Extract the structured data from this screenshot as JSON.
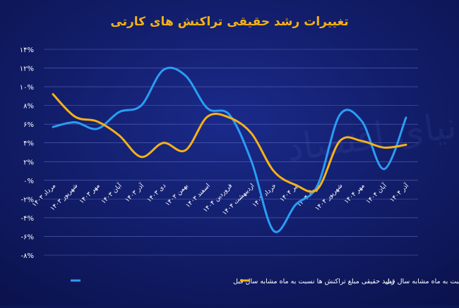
{
  "chart_data": {
    "type": "line",
    "title": "تغییرات رشد حقیقی تراکنش های کارتی",
    "watermark": "دنیای اقتصاد",
    "categories": [
      "مرداد ۱۴۰۳",
      "شهریور ۱۴۰۳",
      "مهر ۱۴۰۳",
      "آبان ۱۴۰۳",
      "آذر ۱۴۰۳",
      "دی ۱۴۰۳",
      "بهمن ۱۴۰۳",
      "اسفند ۱۴۰۳",
      "فروردین ۱۴۰۴",
      "اردیبهشت ۱۴۰۴",
      "خرداد ۱۴۰۴",
      "تیر ۱۴۰۴",
      "مرداد ۱۴۰۴",
      "شهریور ۱۴۰۴",
      "مهر ۱۴۰۴",
      "آبان ۱۴۰۴",
      "آذر ۱۴۰۴"
    ],
    "series": [
      {
        "name": "رشد حقیقی مبلغ تراکنش ها نسبت به ماه مشابه سال قبل",
        "color": "#2a9df4",
        "values": [
          5.7,
          6.2,
          5.5,
          7.3,
          8.0,
          11.8,
          11.2,
          7.7,
          7.0,
          2.0,
          -5.4,
          -2.6,
          -0.5,
          7.0,
          6.3,
          1.2,
          6.7
        ]
      },
      {
        "name": "رشد تعداد تراکنش ها نسبت به ماه مشابه سال قبل",
        "color": "#f5b215",
        "values": [
          9.2,
          6.8,
          6.3,
          4.8,
          2.5,
          4.0,
          3.2,
          6.8,
          6.7,
          5.0,
          1.0,
          -0.5,
          -0.9,
          4.2,
          4.2,
          3.5,
          3.8
        ]
      }
    ],
    "ylim": [
      -8,
      14
    ],
    "yticks": [
      {
        "value": 14,
        "label": "۱۴%"
      },
      {
        "value": 12,
        "label": "۱۲%"
      },
      {
        "value": 10,
        "label": "۱۰%"
      },
      {
        "value": 8,
        "label": "۸%"
      },
      {
        "value": 6,
        "label": "۶%"
      },
      {
        "value": 4,
        "label": "۴%"
      },
      {
        "value": 2,
        "label": "۲%"
      },
      {
        "value": 0,
        "label": "۰%"
      },
      {
        "value": -2,
        "label": "-۲%"
      },
      {
        "value": -4,
        "label": "-۴%"
      },
      {
        "value": -6,
        "label": "-۶%"
      },
      {
        "value": -8,
        "label": "-۸%"
      }
    ],
    "grid": true
  }
}
